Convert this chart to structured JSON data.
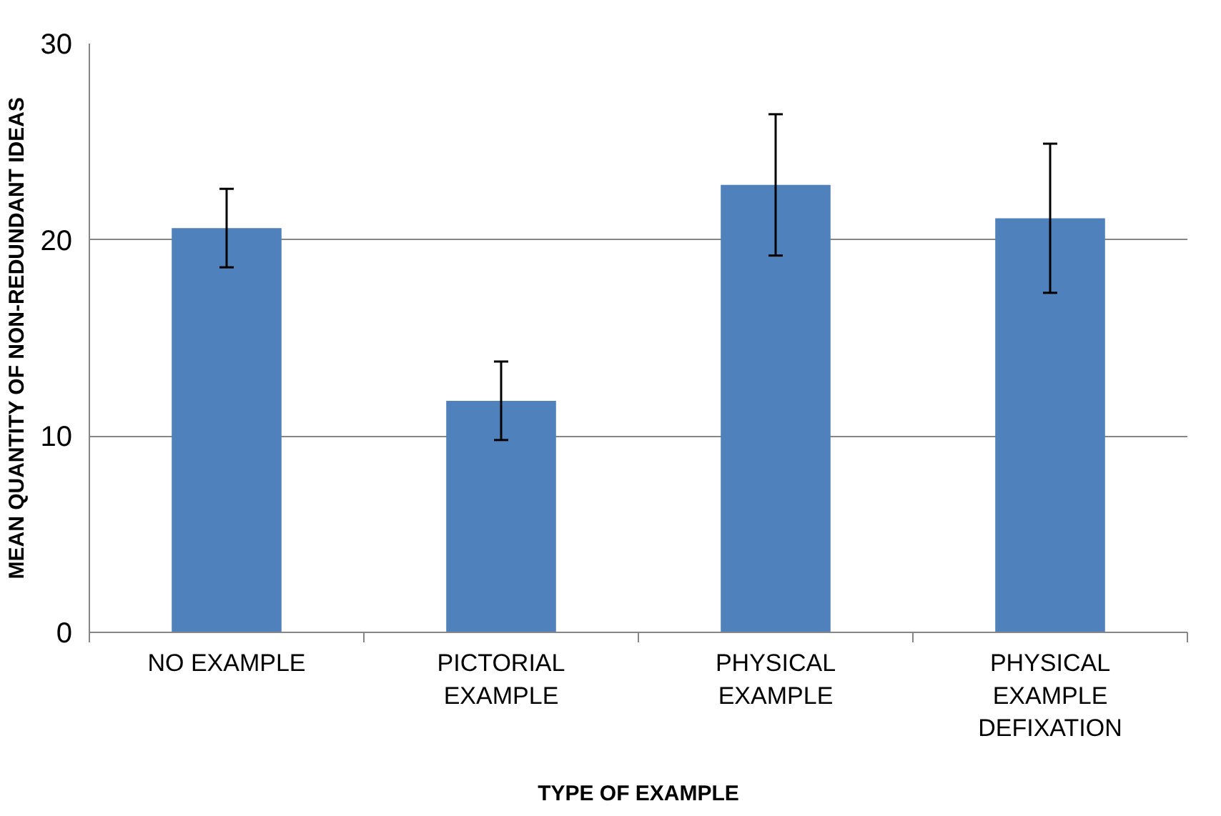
{
  "chart_data": {
    "type": "bar",
    "xlabel": "TYPE OF EXAMPLE",
    "ylabel": "MEAN QUANTITY OF NON-REDUNDANT IDEAS",
    "categories": [
      "NO EXAMPLE",
      "PICTORIAL\nEXAMPLE",
      "PHYSICAL\nEXAMPLE",
      "PHYSICAL\nEXAMPLE\nDEFIXATION"
    ],
    "values": [
      20.6,
      11.8,
      22.8,
      21.1
    ],
    "errors": [
      2.0,
      2.0,
      3.6,
      3.8
    ],
    "color": "#4f81bd",
    "ylim": [
      0,
      30
    ],
    "yticks": [
      0,
      10,
      20,
      30
    ],
    "grid": "y"
  }
}
